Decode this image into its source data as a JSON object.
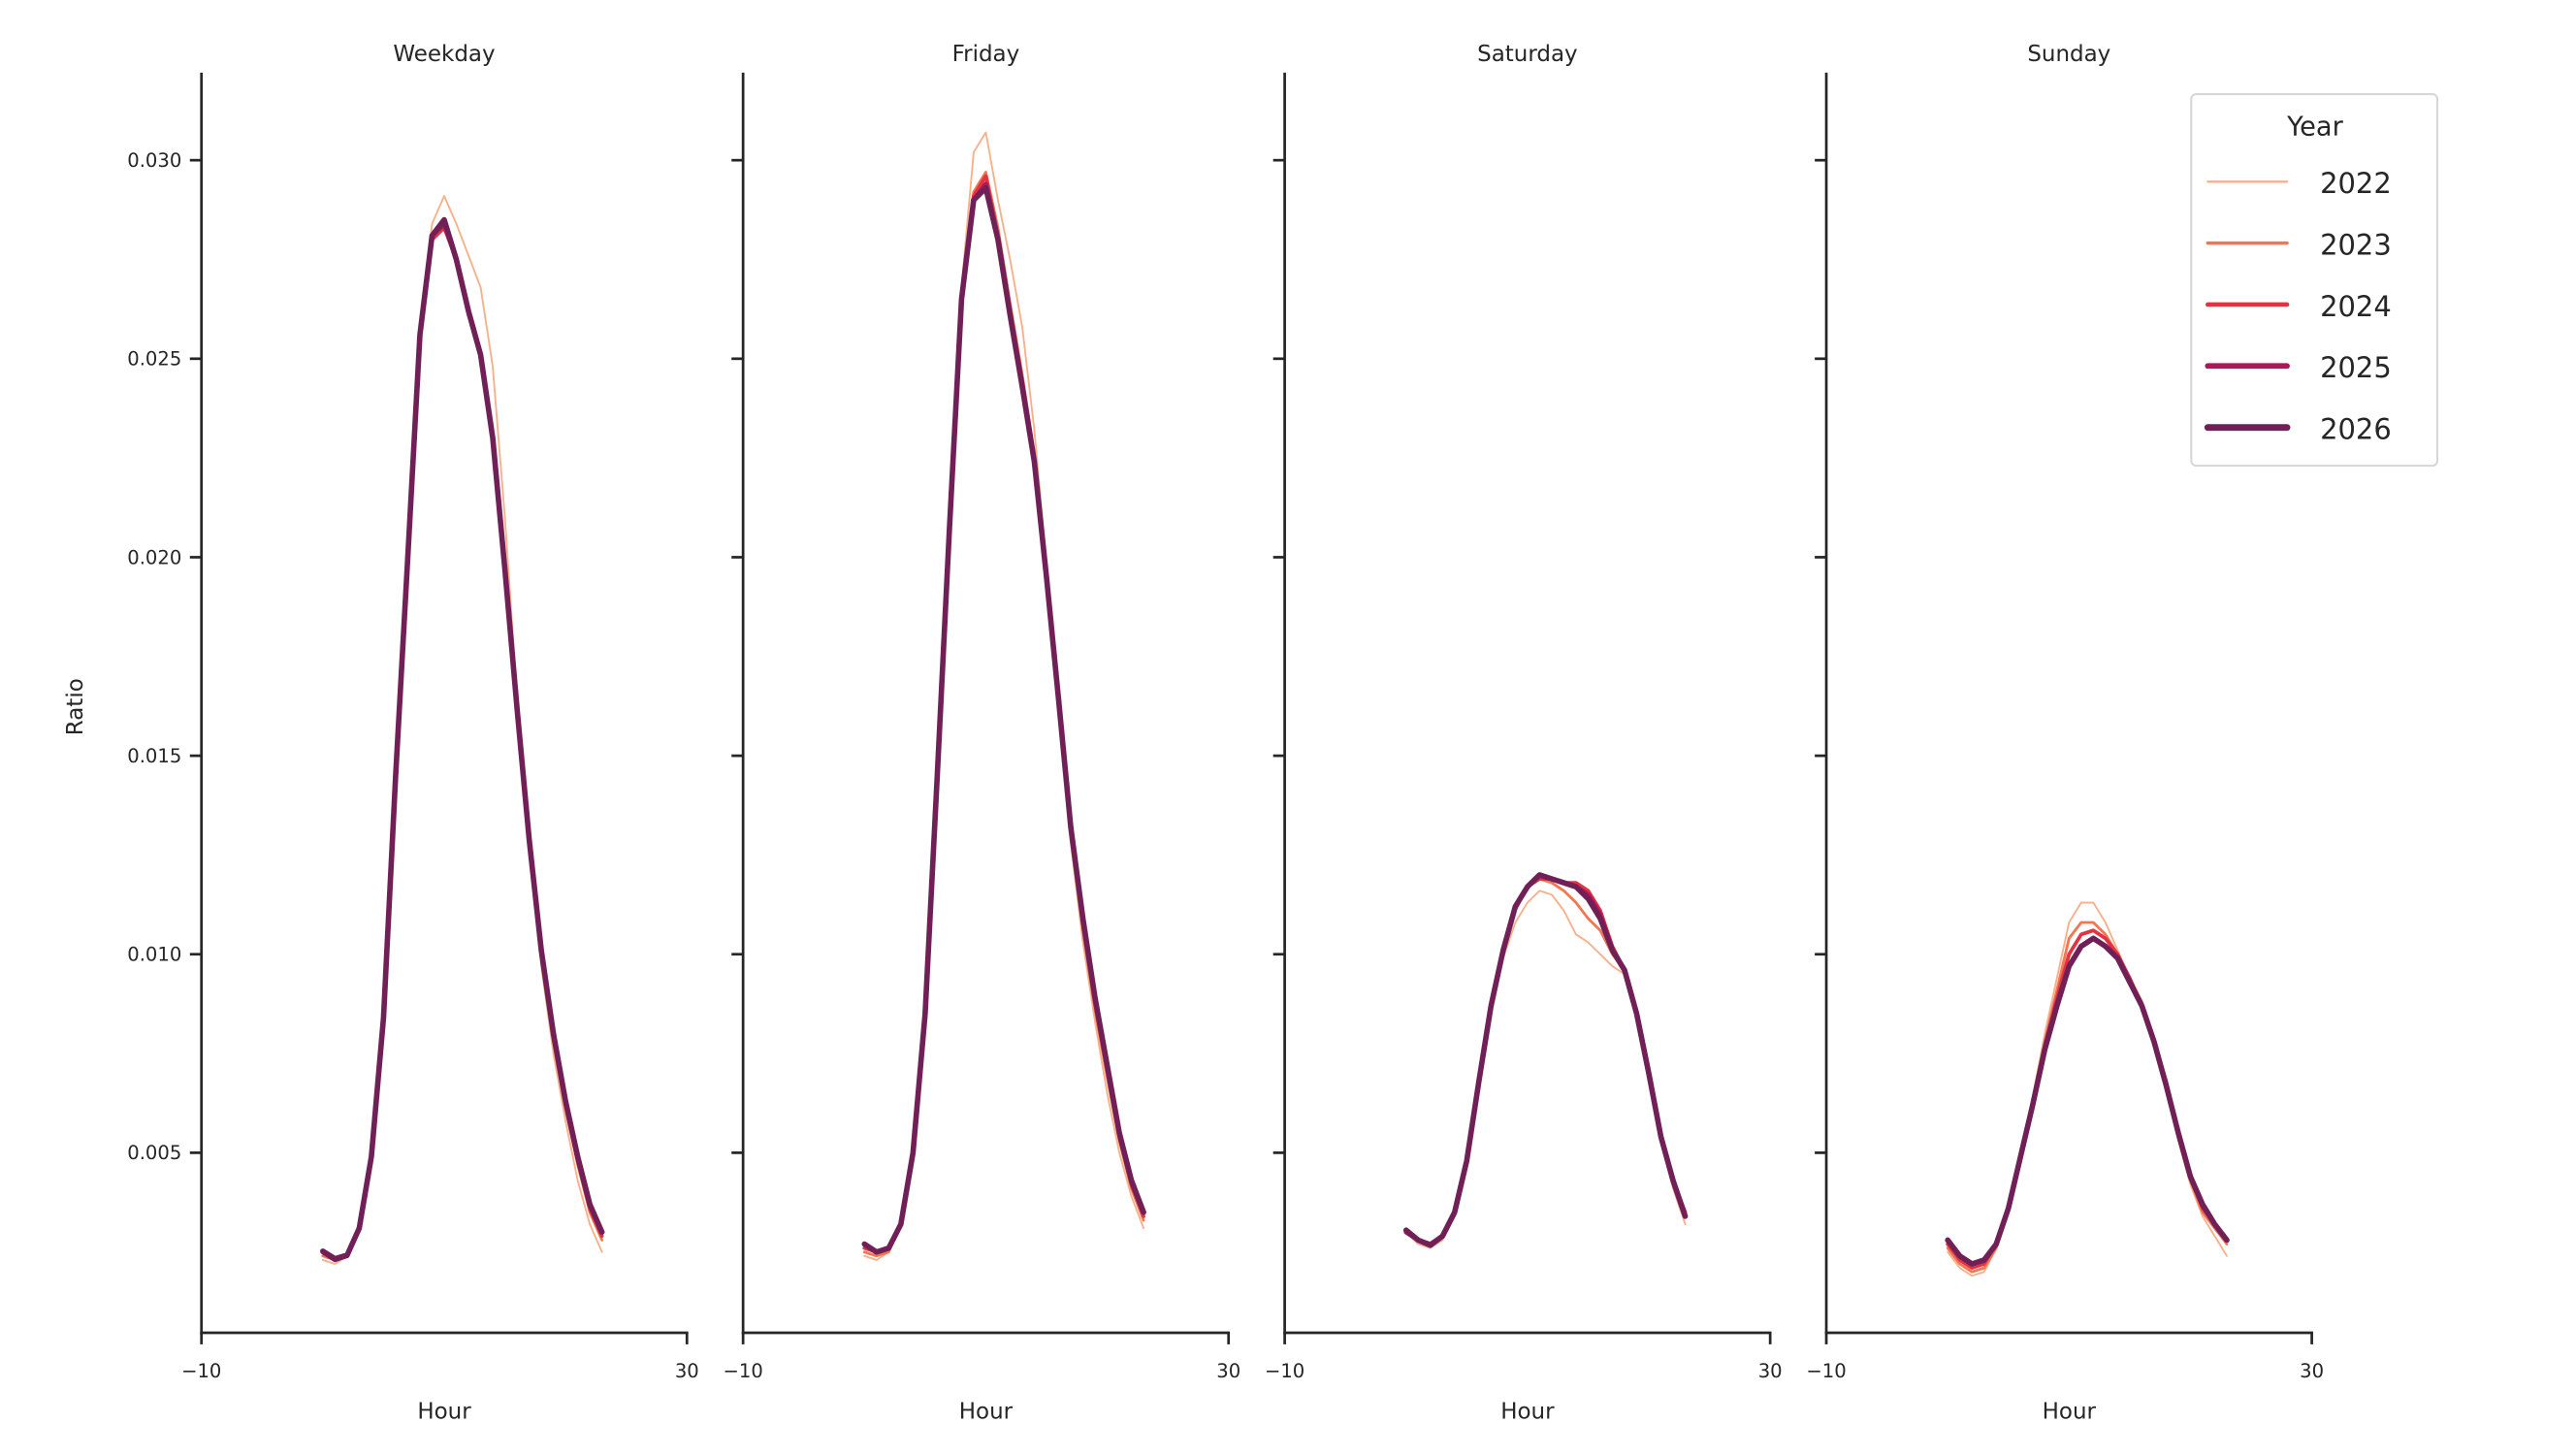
{
  "chart_data": {
    "type": "line",
    "layout": "facet-columns",
    "x": [
      0,
      1,
      2,
      3,
      4,
      5,
      6,
      7,
      8,
      9,
      10,
      11,
      12,
      13,
      14,
      15,
      16,
      17,
      18,
      19,
      20,
      21,
      22,
      23
    ],
    "xlabel": "Hour",
    "ylabel": "Ratio",
    "xlim": [
      -10,
      30
    ],
    "ylim": [
      0.0005,
      0.0322
    ],
    "xticks": [
      -10,
      30
    ],
    "xtick_labels": [
      "−10",
      "30"
    ],
    "yticks": [
      0.005,
      0.01,
      0.015,
      0.02,
      0.025,
      0.03
    ],
    "ytick_labels": [
      "0.005",
      "0.010",
      "0.015",
      "0.020",
      "0.025",
      "0.030"
    ],
    "sharey": true,
    "grid": false,
    "legend": {
      "title": "Year",
      "placement": "top-right",
      "entries": [
        "2022",
        "2023",
        "2024",
        "2025",
        "2026"
      ],
      "colors": [
        "#f8b08a",
        "#f37651",
        "#e13342",
        "#ad1759",
        "#701f57"
      ],
      "line_weights": [
        1,
        1.5,
        2,
        2.5,
        3
      ]
    },
    "panels": [
      {
        "title": "Weekday",
        "series": [
          {
            "name": "2022",
            "values": [
              0.0023,
              0.0022,
              0.0024,
              0.0031,
              0.0049,
              0.0084,
              0.0145,
              0.0201,
              0.0258,
              0.0284,
              0.0291,
              0.0284,
              0.0276,
              0.0268,
              0.0248,
              0.021,
              0.0165,
              0.0127,
              0.0097,
              0.0075,
              0.0058,
              0.0043,
              0.0032,
              0.0025
            ]
          },
          {
            "name": "2023",
            "values": [
              0.0024,
              0.0023,
              0.0024,
              0.0031,
              0.0049,
              0.0084,
              0.0145,
              0.02,
              0.0257,
              0.028,
              0.0283,
              0.0276,
              0.0263,
              0.0252,
              0.0231,
              0.0197,
              0.0162,
              0.0128,
              0.0099,
              0.0078,
              0.0061,
              0.0047,
              0.0035,
              0.0028
            ]
          },
          {
            "name": "2024",
            "values": [
              0.0025,
              0.0023,
              0.0024,
              0.0031,
              0.0049,
              0.0084,
              0.0145,
              0.02,
              0.0256,
              0.028,
              0.0283,
              0.0275,
              0.0262,
              0.0251,
              0.023,
              0.0197,
              0.0162,
              0.0129,
              0.01,
              0.0079,
              0.0062,
              0.0048,
              0.0036,
              0.0029
            ]
          },
          {
            "name": "2025",
            "values": [
              0.0025,
              0.0023,
              0.0024,
              0.0031,
              0.0049,
              0.0084,
              0.0145,
              0.02,
              0.0256,
              0.0281,
              0.0284,
              0.0275,
              0.0262,
              0.0251,
              0.023,
              0.0197,
              0.0162,
              0.0129,
              0.0101,
              0.008,
              0.0063,
              0.0049,
              0.0037,
              0.003
            ]
          },
          {
            "name": "2026",
            "values": [
              0.00252,
              0.00233,
              0.00242,
              0.0031,
              0.0049,
              0.0084,
              0.0145,
              0.02,
              0.0256,
              0.0281,
              0.0285,
              0.0275,
              0.0262,
              0.0251,
              0.023,
              0.0197,
              0.0162,
              0.0129,
              0.0101,
              0.008,
              0.0063,
              0.0049,
              0.0037,
              0.003
            ]
          }
        ]
      },
      {
        "title": "Friday",
        "series": [
          {
            "name": "2022",
            "values": [
              0.0024,
              0.0023,
              0.0025,
              0.0032,
              0.005,
              0.0085,
              0.0146,
              0.021,
              0.0268,
              0.0302,
              0.0307,
              0.029,
              0.0275,
              0.0258,
              0.0232,
              0.0198,
              0.0162,
              0.0128,
              0.0103,
              0.0083,
              0.0065,
              0.005,
              0.0039,
              0.0031
            ]
          },
          {
            "name": "2023",
            "values": [
              0.0025,
              0.0024,
              0.0025,
              0.0032,
              0.005,
              0.0085,
              0.0145,
              0.0208,
              0.0266,
              0.0292,
              0.0297,
              0.0283,
              0.0264,
              0.0246,
              0.0226,
              0.0196,
              0.0163,
              0.013,
              0.0106,
              0.0086,
              0.0069,
              0.0053,
              0.0041,
              0.0033
            ]
          },
          {
            "name": "2024",
            "values": [
              0.0026,
              0.0025,
              0.0026,
              0.0032,
              0.005,
              0.0085,
              0.0145,
              0.0207,
              0.0265,
              0.0291,
              0.0296,
              0.0281,
              0.0262,
              0.0244,
              0.0225,
              0.0195,
              0.0164,
              0.0131,
              0.0108,
              0.0088,
              0.0071,
              0.0054,
              0.0042,
              0.0034
            ]
          },
          {
            "name": "2025",
            "values": [
              0.0027,
              0.0025,
              0.0026,
              0.0032,
              0.005,
              0.0085,
              0.0145,
              0.0207,
              0.0265,
              0.029,
              0.0294,
              0.028,
              0.0261,
              0.0243,
              0.0224,
              0.0195,
              0.0164,
              0.0132,
              0.0109,
              0.0089,
              0.0072,
              0.0055,
              0.0043,
              0.0035
            ]
          },
          {
            "name": "2026",
            "values": [
              0.0027,
              0.0025,
              0.0026,
              0.0032,
              0.005,
              0.0085,
              0.0145,
              0.0207,
              0.0265,
              0.029,
              0.0293,
              0.028,
              0.0261,
              0.0243,
              0.0224,
              0.0195,
              0.0164,
              0.0132,
              0.0109,
              0.0089,
              0.0072,
              0.0055,
              0.0043,
              0.0035
            ]
          }
        ]
      },
      {
        "title": "Saturday",
        "series": [
          {
            "name": "2022",
            "values": [
              0.003,
              0.0027,
              0.0026,
              0.0028,
              0.0034,
              0.0047,
              0.0066,
              0.0085,
              0.0099,
              0.0108,
              0.0113,
              0.0116,
              0.0115,
              0.0111,
              0.0105,
              0.0103,
              0.01,
              0.0097,
              0.0095,
              0.0084,
              0.0069,
              0.0053,
              0.0041,
              0.0032
            ]
          },
          {
            "name": "2023",
            "values": [
              0.003,
              0.0028,
              0.0027,
              0.0029,
              0.0035,
              0.0048,
              0.0068,
              0.0087,
              0.0101,
              0.0111,
              0.0117,
              0.0119,
              0.0118,
              0.0116,
              0.0113,
              0.0109,
              0.0106,
              0.01,
              0.0096,
              0.0085,
              0.007,
              0.0054,
              0.0043,
              0.0034
            ]
          },
          {
            "name": "2024",
            "values": [
              0.003,
              0.0028,
              0.0027,
              0.0029,
              0.0035,
              0.0048,
              0.0068,
              0.0087,
              0.0101,
              0.0112,
              0.0117,
              0.0119,
              0.0119,
              0.0118,
              0.0118,
              0.0116,
              0.0111,
              0.0102,
              0.0096,
              0.0085,
              0.007,
              0.0054,
              0.0043,
              0.0035
            ]
          },
          {
            "name": "2025",
            "values": [
              0.003,
              0.0028,
              0.0027,
              0.0029,
              0.0035,
              0.0048,
              0.0068,
              0.0087,
              0.0101,
              0.0112,
              0.0117,
              0.012,
              0.0119,
              0.0118,
              0.0117,
              0.0115,
              0.011,
              0.0101,
              0.0096,
              0.0085,
              0.007,
              0.0054,
              0.0043,
              0.0034
            ]
          },
          {
            "name": "2026",
            "values": [
              0.00305,
              0.0028,
              0.00267,
              0.0029,
              0.0035,
              0.0048,
              0.0068,
              0.0087,
              0.0101,
              0.0112,
              0.0117,
              0.012,
              0.0119,
              0.0118,
              0.0117,
              0.0114,
              0.0109,
              0.0101,
              0.0096,
              0.0085,
              0.007,
              0.0054,
              0.0043,
              0.0034
            ]
          }
        ]
      },
      {
        "title": "Sunday",
        "series": [
          {
            "name": "2022",
            "values": [
              0.0025,
              0.0021,
              0.0019,
              0.002,
              0.0026,
              0.0036,
              0.005,
              0.0064,
              0.008,
              0.0094,
              0.0108,
              0.0113,
              0.0113,
              0.0108,
              0.0101,
              0.0094,
              0.0087,
              0.0077,
              0.0066,
              0.0053,
              0.0042,
              0.0034,
              0.0029,
              0.0024
            ]
          },
          {
            "name": "2023",
            "values": [
              0.0026,
              0.0022,
              0.002,
              0.0021,
              0.0026,
              0.0036,
              0.005,
              0.0063,
              0.0078,
              0.0091,
              0.0104,
              0.0108,
              0.0108,
              0.0105,
              0.01,
              0.0094,
              0.0088,
              0.0078,
              0.0067,
              0.0054,
              0.0043,
              0.0035,
              0.0031,
              0.0027
            ]
          },
          {
            "name": "2024",
            "values": [
              0.0027,
              0.0023,
              0.0021,
              0.0022,
              0.0027,
              0.0036,
              0.0049,
              0.0062,
              0.0077,
              0.0089,
              0.01,
              0.0105,
              0.0106,
              0.0104,
              0.01,
              0.0094,
              0.0087,
              0.0078,
              0.0068,
              0.0055,
              0.0044,
              0.0036,
              0.0032,
              0.0028
            ]
          },
          {
            "name": "2025",
            "values": [
              0.0028,
              0.0024,
              0.0022,
              0.0023,
              0.0027,
              0.0036,
              0.0049,
              0.0062,
              0.0076,
              0.0087,
              0.0097,
              0.0102,
              0.0104,
              0.0102,
              0.0099,
              0.0093,
              0.0087,
              0.0078,
              0.0067,
              0.0055,
              0.0044,
              0.0037,
              0.0032,
              0.0028
            ]
          },
          {
            "name": "2026",
            "values": [
              0.0028,
              0.0024,
              0.0022,
              0.0023,
              0.0027,
              0.0036,
              0.0049,
              0.0062,
              0.0076,
              0.0087,
              0.0097,
              0.0102,
              0.0104,
              0.0102,
              0.0099,
              0.0093,
              0.0087,
              0.0078,
              0.0067,
              0.0055,
              0.0044,
              0.0037,
              0.0032,
              0.0028
            ]
          }
        ]
      }
    ]
  }
}
